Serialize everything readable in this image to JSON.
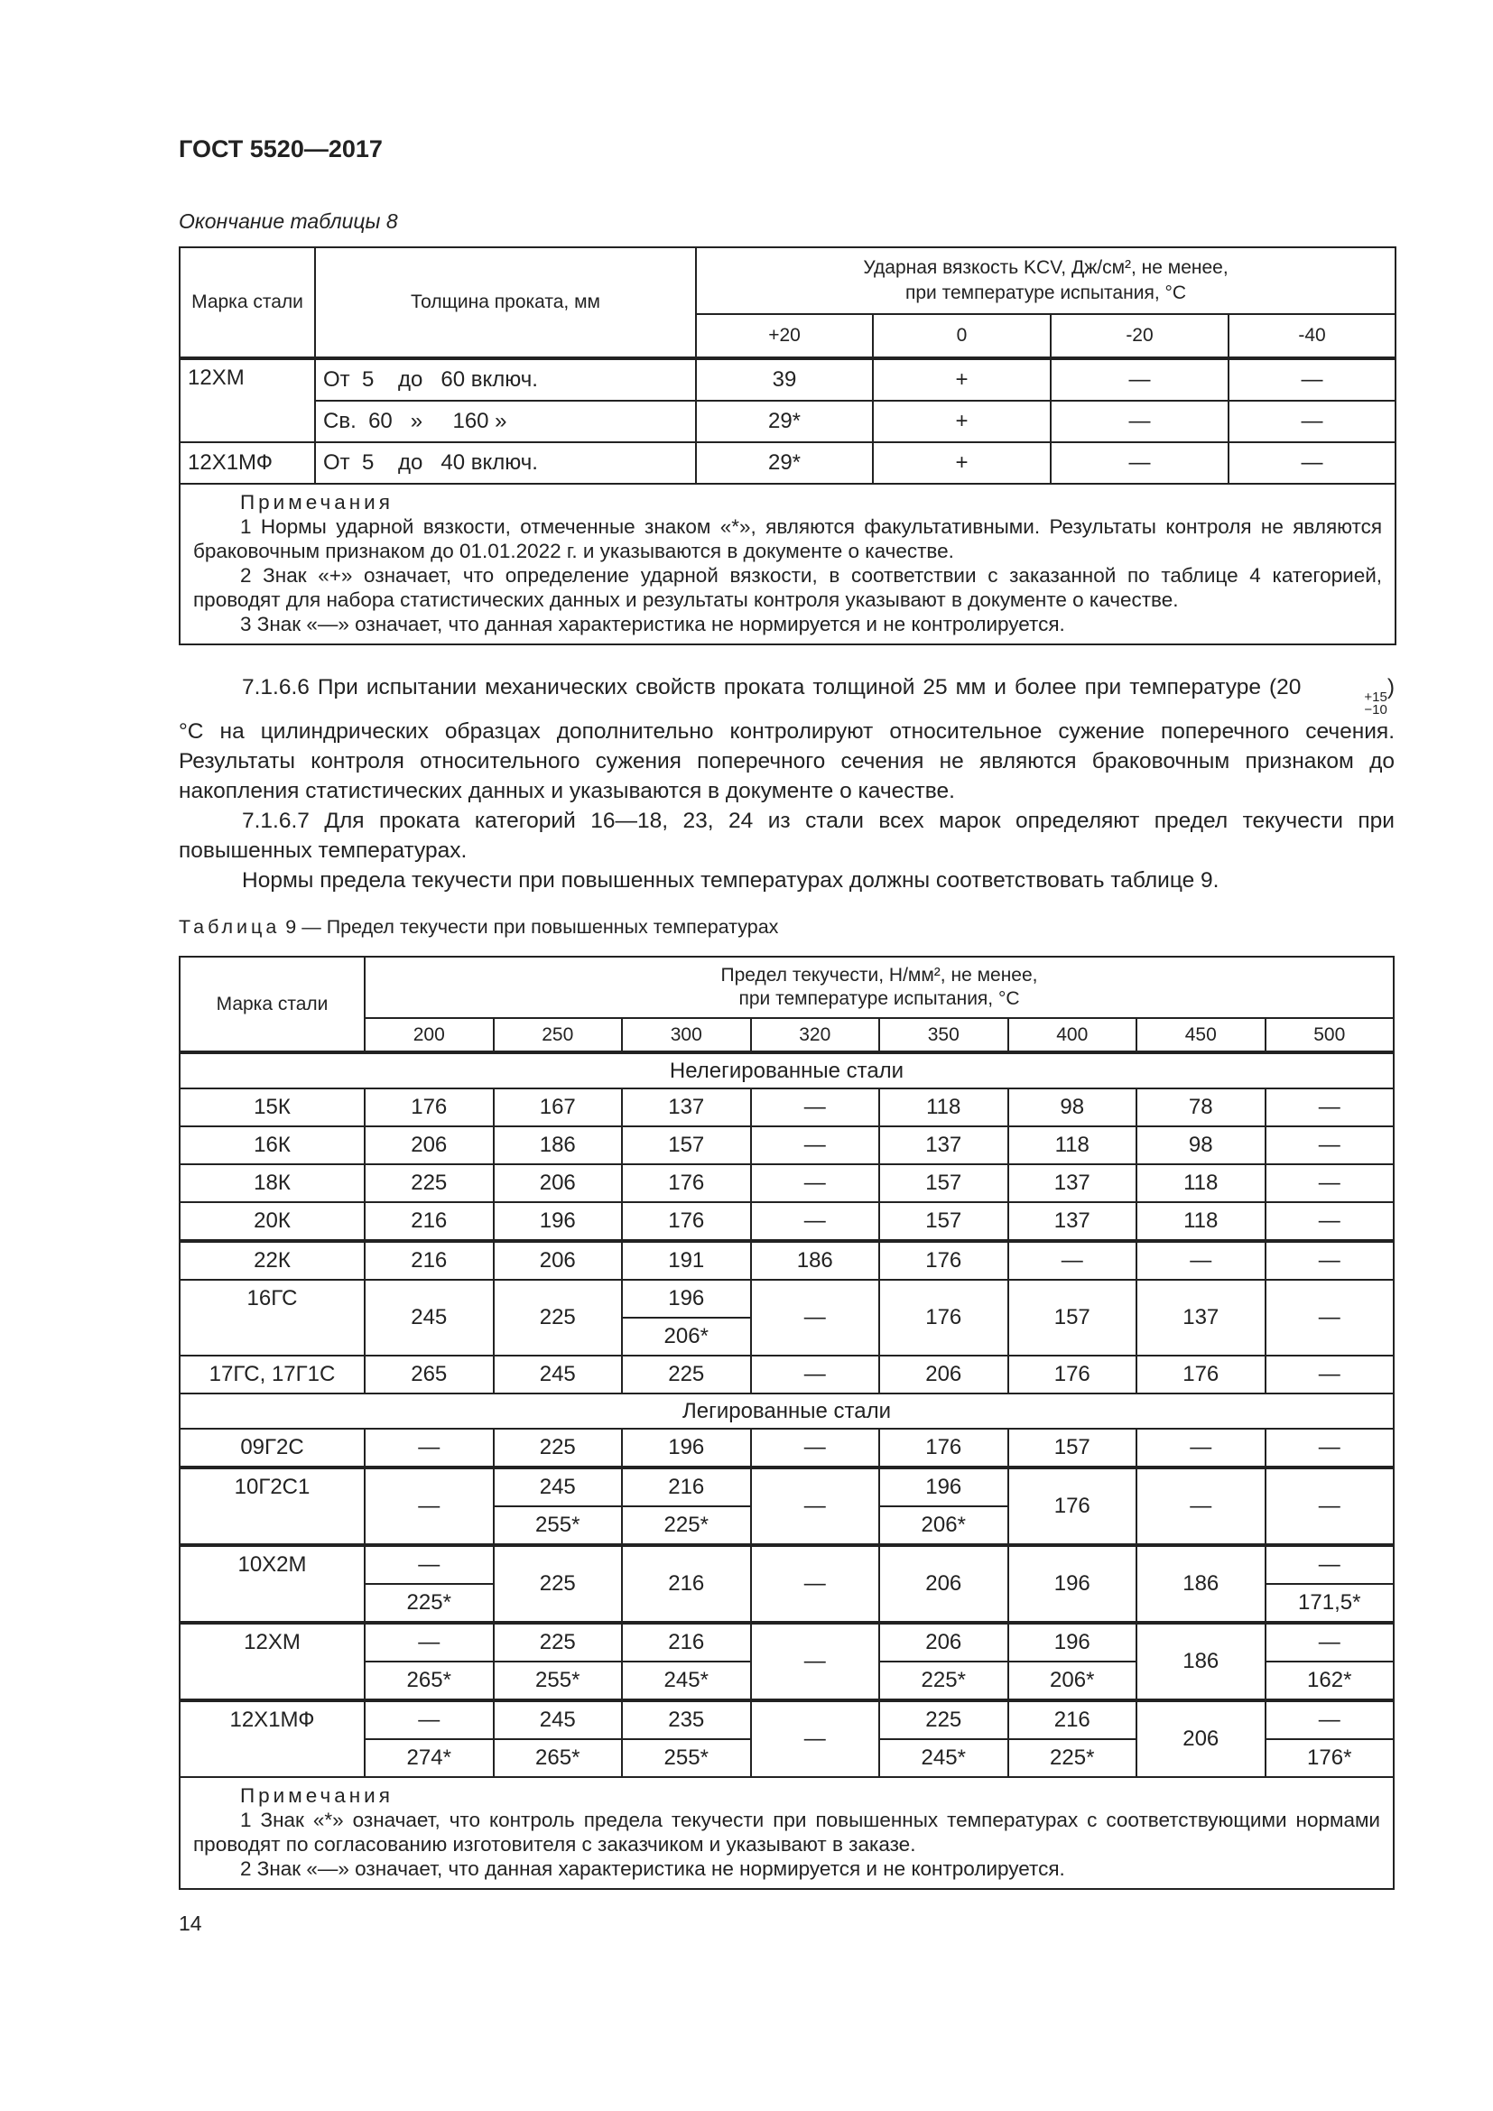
{
  "header": {
    "title": "ГОСТ 5520—2017"
  },
  "table8": {
    "caption": "Окончание таблицы 8",
    "col_grade": "Марка стали",
    "col_thickness": "Толщина проката, мм",
    "col_impact_line1": "Ударная вязкость KCV, Дж/см², не менее,",
    "col_impact_line2": "при температуре испытания, °С",
    "temps": [
      "+20",
      "0",
      "-20",
      "-40"
    ],
    "rows": [
      {
        "grade": "12ХМ",
        "thickness": "От  5    до   60 включ.",
        "values": [
          "39",
          "+",
          "—",
          "—"
        ]
      },
      {
        "grade": "",
        "thickness": "Св.  60   »     160 »",
        "values": [
          "29*",
          "+",
          "—",
          "—"
        ]
      },
      {
        "grade": "12Х1МФ",
        "thickness": "От  5    до   40 включ.",
        "values": [
          "29*",
          "+",
          "—",
          "—"
        ]
      }
    ],
    "notes_title": "Примечания",
    "notes": [
      "1 Нормы ударной вязкости, отмеченные знаком «*», являются факультативными. Результаты контроля не являются браковочным признаком до 01.01.2022 г. и указываются в документе о качестве.",
      "2 Знак «+» означает, что определение ударной вязкости, в соответствии с заказанной по таблице 4 категорией, проводят для набора статистических данных и результаты контроля указывают в документе о качестве.",
      "3 Знак «—» означает, что данная характеристика не нормируется и не контролируется."
    ]
  },
  "body": {
    "p1": "7.1.6.6 При испытании механических свойств проката толщиной 25 мм и более при температуре (20",
    "p1_sup": "+15",
    "p1_sub": "−10",
    "p1_rest": ") °С на цилиндрических образцах дополнительно контролируют относительное сужение поперечного сечения. Результаты контроля относительного сужения поперечного сечения не являются браковочным признаком до накопления статистических данных и указываются в документе о качестве.",
    "p2": "7.1.6.7 Для проката категорий 16—18, 23, 24 из стали всех марок определяют предел текучести при повышенных температурах.",
    "p3": "Нормы предела текучести при повышенных температурах должны соответствовать таблице 9."
  },
  "table9": {
    "caption_label": "Таблица",
    "caption": " 9 — Предел текучести при повышенных температурах",
    "col_grade": "Марка стали",
    "col_yield_line1": "Предел текучести, Н/мм², не менее,",
    "col_yield_line2": "при температуре испытания, °С",
    "temps": [
      "200",
      "250",
      "300",
      "320",
      "350",
      "400",
      "450",
      "500"
    ],
    "group1": "Нелегированные стали",
    "group2": "Легированные стали",
    "rows": [
      {
        "grade": "15К",
        "v": [
          "176",
          "167",
          "137",
          "—",
          "118",
          "98",
          "78",
          "—"
        ]
      },
      {
        "grade": "16К",
        "v": [
          "206",
          "186",
          "157",
          "—",
          "137",
          "118",
          "98",
          "—"
        ]
      },
      {
        "grade": "18К",
        "v": [
          "225",
          "206",
          "176",
          "—",
          "157",
          "137",
          "118",
          "—"
        ]
      },
      {
        "grade": "20К",
        "v": [
          "216",
          "196",
          "176",
          "—",
          "157",
          "137",
          "118",
          "—"
        ]
      },
      {
        "grade": "22К",
        "v": [
          "216",
          "206",
          "191",
          "186",
          "176",
          "—",
          "—",
          "—"
        ]
      },
      {
        "grade": "16ГС",
        "v": [
          "245",
          "225",
          "196",
          "—",
          "176",
          "157",
          "137",
          "—"
        ],
        "alt": {
          "300": "206*"
        }
      },
      {
        "grade": "17ГС, 17Г1С",
        "v": [
          "265",
          "245",
          "225",
          "—",
          "206",
          "176",
          "176",
          "—"
        ]
      },
      {
        "grade": "09Г2С",
        "v": [
          "—",
          "225",
          "196",
          "—",
          "176",
          "157",
          "—",
          "—"
        ]
      },
      {
        "grade": "10Г2С1",
        "top": [
          "—",
          "245",
          "216",
          "—",
          "196",
          "176",
          "—",
          "—"
        ],
        "bottom": [
          "255*",
          "225*",
          "206*"
        ]
      },
      {
        "grade": "10Х2М",
        "top": [
          "—",
          "225",
          "216",
          "—",
          "206",
          "196",
          "186",
          "—"
        ],
        "bottom": [
          "225*",
          "171,5*"
        ]
      },
      {
        "grade": "12ХМ",
        "top": [
          "—",
          "225",
          "216",
          "—",
          "206",
          "196",
          "186",
          "—"
        ],
        "bottom": [
          "265*",
          "255*",
          "245*",
          "225*",
          "206*",
          "162*"
        ]
      },
      {
        "grade": "12Х1МФ",
        "top": [
          "—",
          "245",
          "235",
          "—",
          "225",
          "216",
          "206",
          "—"
        ],
        "bottom": [
          "274*",
          "265*",
          "255*",
          "245*",
          "225*",
          "176*"
        ]
      }
    ],
    "notes_title": "Примечания",
    "notes": [
      "1 Знак «*» означает, что контроль предела текучести при повышенных температурах с соответствующими нормами проводят по согласованию изготовителя с заказчиком и указывают в заказе.",
      "2 Знак «—» означает, что данная характеристика не нормируется и не контролируется."
    ]
  },
  "footer": {
    "page_number": "14"
  }
}
